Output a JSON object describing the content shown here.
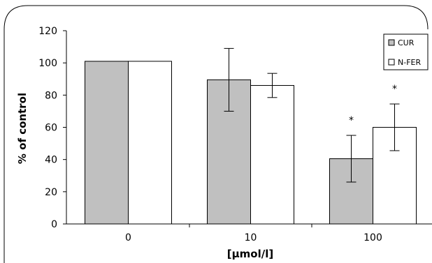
{
  "chart_data": {
    "type": "bar",
    "categories": [
      "0",
      "10",
      "100"
    ],
    "series": [
      {
        "name": "CUR",
        "values": [
          101,
          89.5,
          40.5
        ],
        "error": [
          0,
          19.5,
          14.5
        ],
        "color": "#c0c0c0",
        "significance": [
          "",
          "",
          "*"
        ]
      },
      {
        "name": "N-FER",
        "values": [
          101,
          86,
          60
        ],
        "error": [
          0,
          7.5,
          14.5
        ],
        "color": "#ffffff",
        "significance": [
          "",
          "",
          "*"
        ]
      }
    ],
    "xlabel": "[μmol/l]",
    "ylabel": "% of control",
    "ylim": [
      0,
      120
    ],
    "yticks": [
      "0",
      "20",
      "40",
      "60",
      "80",
      "100",
      "120"
    ],
    "grid": false,
    "legend_position": "top-right",
    "bar_stroke": "#000000"
  }
}
